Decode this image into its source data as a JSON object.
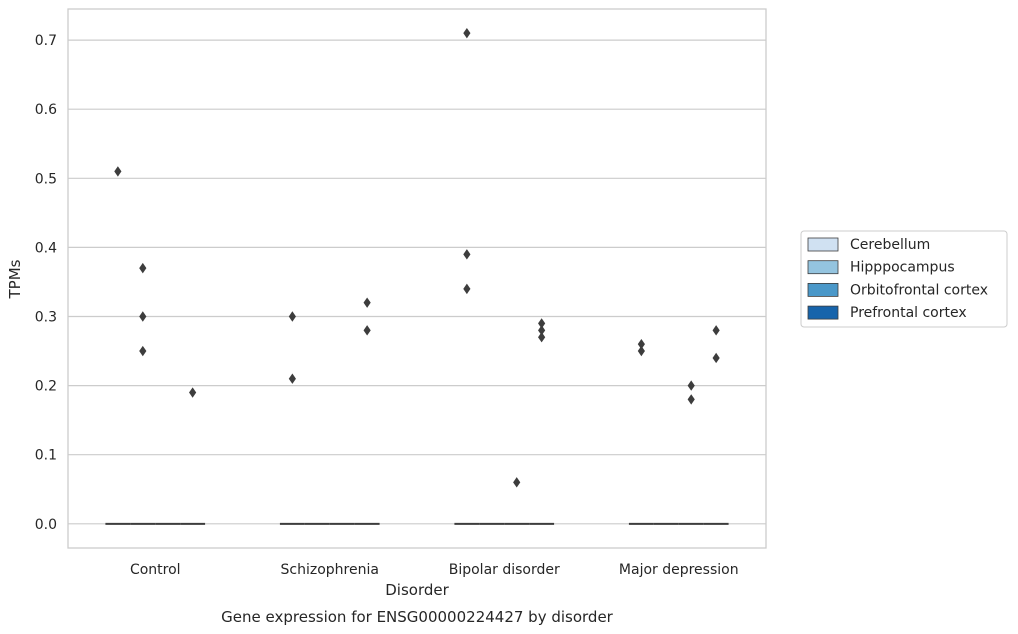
{
  "chart_data": {
    "type": "boxplot",
    "xlabel": "Disorder",
    "ylabel": "TPMs",
    "caption": "Gene expression for ENSG00000224427 by disorder",
    "categories": [
      "Control",
      "Schizophrenia",
      "Bipolar disorder",
      "Major depression"
    ],
    "ylim": [
      -0.035,
      0.745
    ],
    "yticks": [
      0.0,
      0.1,
      0.2,
      0.3,
      0.4,
      0.5,
      0.6,
      0.7
    ],
    "ytick_labels": [
      "0.0",
      "0.1",
      "0.2",
      "0.3",
      "0.4",
      "0.5",
      "0.6",
      "0.7"
    ],
    "grid": true,
    "legend_position": "right",
    "series": [
      {
        "name": "Cerebellum",
        "color": "#d0e1f2",
        "median": [
          0,
          0,
          0,
          0
        ],
        "outliers": [
          [
            0.51
          ],
          [
            0.3,
            0.21
          ],
          [
            0.71,
            0.39,
            0.34
          ],
          [
            0.26,
            0.25
          ]
        ]
      },
      {
        "name": "Hipppocampus",
        "color": "#94c4df",
        "median": [
          0,
          0,
          0,
          0
        ],
        "outliers": [
          [
            0.37,
            0.3,
            0.25
          ],
          [],
          [],
          []
        ]
      },
      {
        "name": "Orbitofrontal cortex",
        "color": "#4a98c9",
        "median": [
          0,
          0,
          0,
          0
        ],
        "outliers": [
          [],
          [],
          [
            0.06
          ],
          [
            0.2,
            0.18
          ]
        ]
      },
      {
        "name": "Prefrontal cortex",
        "color": "#1764ab",
        "median": [
          0,
          0,
          0,
          0
        ],
        "outliers": [
          [
            0.19
          ],
          [
            0.32,
            0.28
          ],
          [
            0.29,
            0.28,
            0.27
          ],
          [
            0.28,
            0.24
          ]
        ]
      }
    ]
  }
}
